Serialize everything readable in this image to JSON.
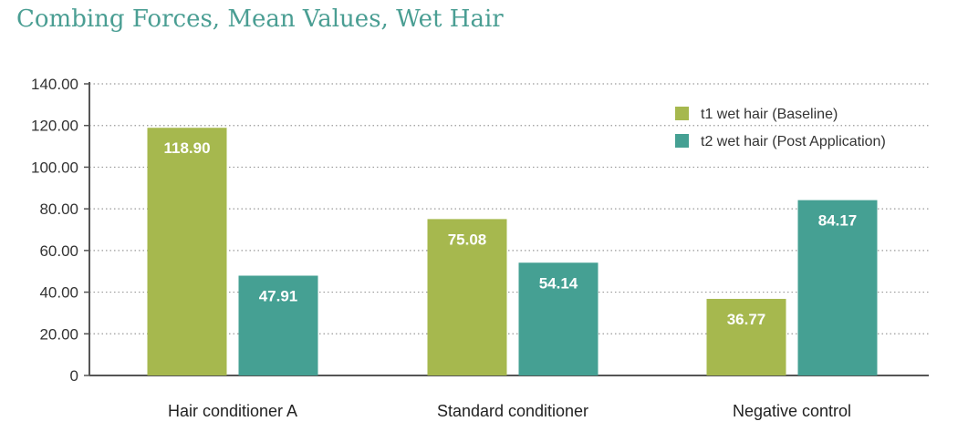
{
  "chart_data": {
    "type": "bar",
    "title": "Combing Forces, Mean Values, Wet Hair",
    "categories": [
      "Hair conditioner A",
      "Standard conditioner",
      "Negative control"
    ],
    "series": [
      {
        "name": "t1 wet hair (Baseline)",
        "color": "#a6b84e",
        "values": [
          118.9,
          75.08,
          36.77
        ]
      },
      {
        "name": "t2 wet hair (Post Application)",
        "color": "#45a093",
        "values": [
          47.91,
          54.14,
          84.17
        ]
      }
    ],
    "y_ticks": [
      "0",
      "20.00",
      "40.00",
      "60.00",
      "80.00",
      "100.00",
      "120.00",
      "140.00"
    ],
    "ylim": [
      0,
      140
    ],
    "grid": true,
    "legend_position": "top-right",
    "data_labels": true
  }
}
